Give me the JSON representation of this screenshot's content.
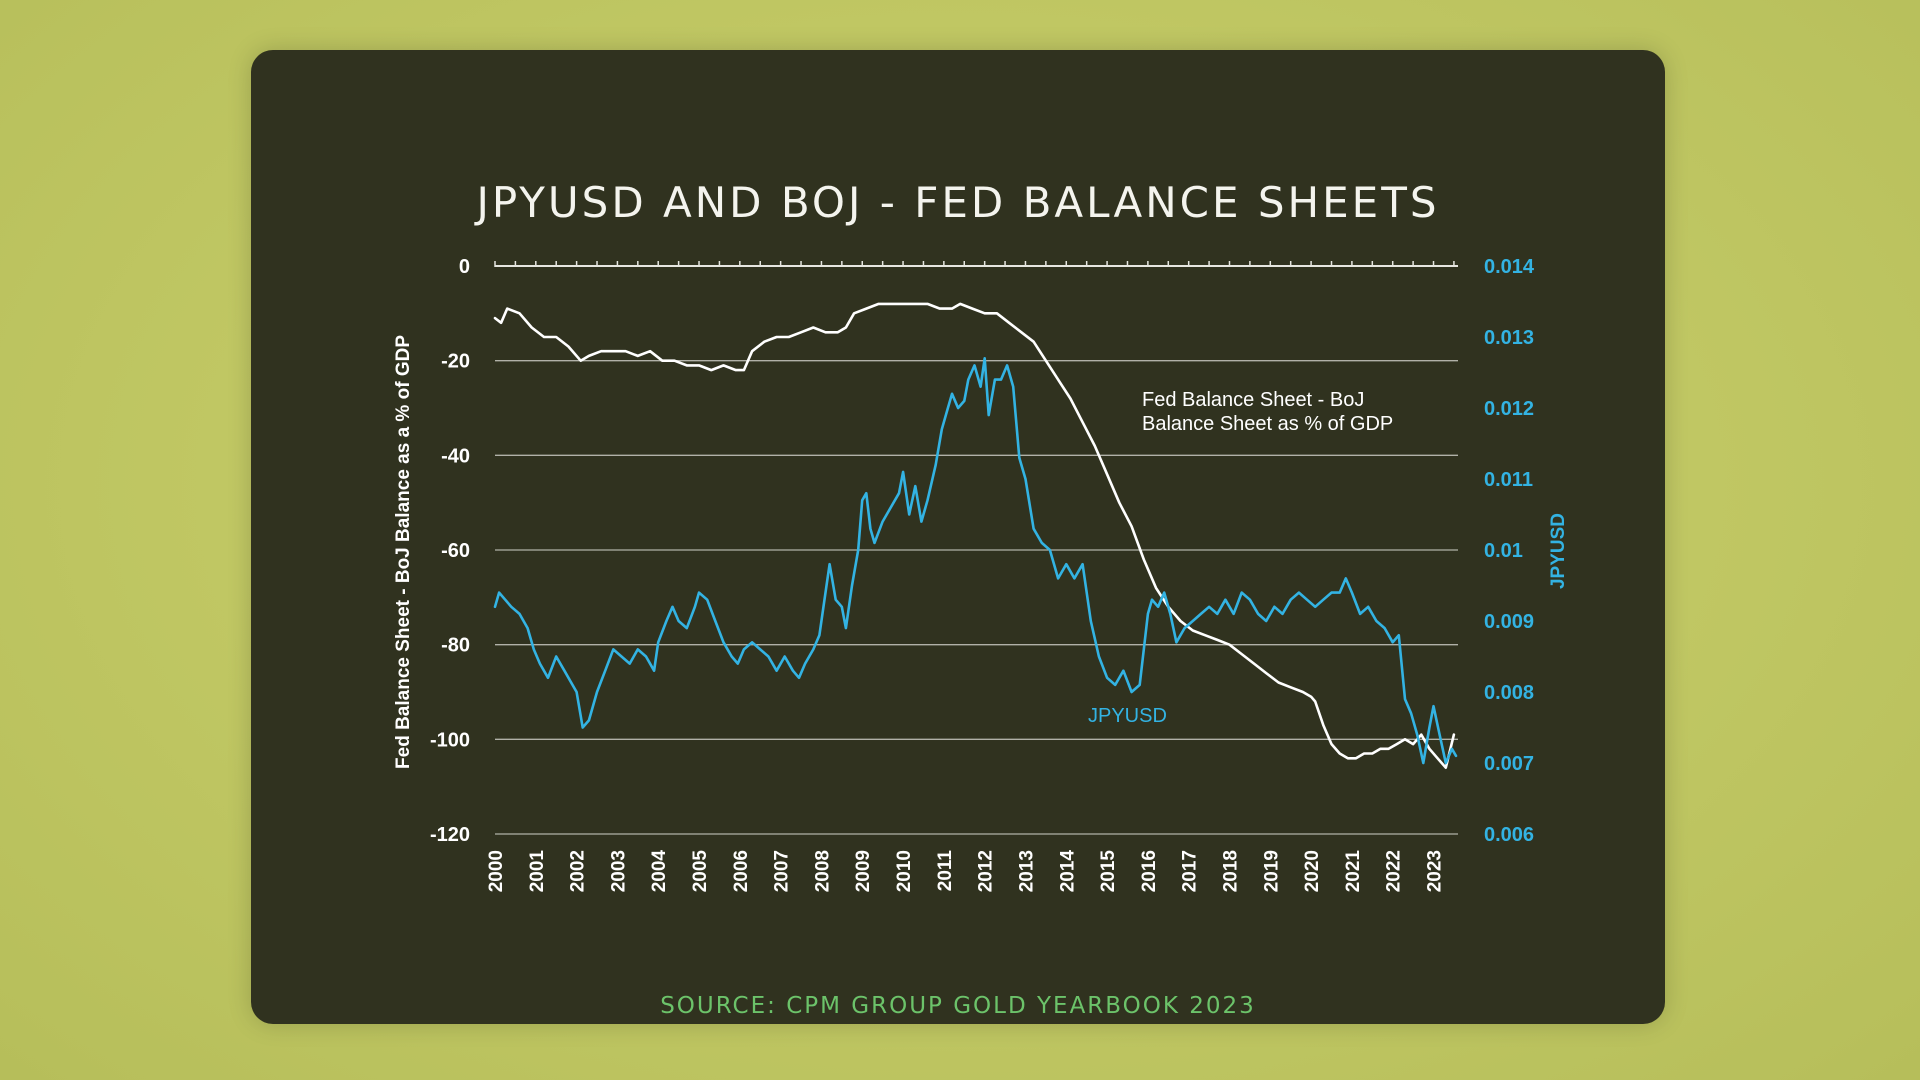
{
  "chart_data": {
    "type": "line",
    "title": "JPYUSD AND BOJ - FED BALANCE SHEETS",
    "source": "SOURCE: CPM GROUP GOLD YEARBOOK 2023",
    "x_ticks": [
      "2000",
      "2001",
      "2002",
      "2003",
      "2004",
      "2005",
      "2006",
      "2007",
      "2008",
      "2009",
      "2010",
      "2011",
      "2012",
      "2013",
      "2014",
      "2015",
      "2016",
      "2017",
      "2018",
      "2019",
      "2020",
      "2021",
      "2022",
      "2023"
    ],
    "xlim": [
      2000,
      2023.6
    ],
    "y_left": {
      "label": "Fed Balance Sheet - BoJ Balance as a % of GDP",
      "ticks": [
        "0",
        "-20",
        "-40",
        "-60",
        "-80",
        "-100",
        "-120"
      ],
      "lim": [
        -120,
        0
      ]
    },
    "y_right": {
      "label": "JPYUSD",
      "ticks": [
        "0.014",
        "0.013",
        "0.012",
        "0.011",
        "0.01",
        "0.009",
        "0.008",
        "0.007",
        "0.006"
      ],
      "lim": [
        0.006,
        0.014
      ]
    },
    "grid": {
      "horizontal": true,
      "values_left": [
        -20,
        -40,
        -60,
        -80,
        -100,
        -120
      ]
    },
    "series": [
      {
        "name": "Fed Balance Sheet - BoJ Balance Sheet as % of GDP",
        "label_lines": [
          "Fed Balance Sheet - BoJ",
          "Balance Sheet as % of GDP"
        ],
        "axis": "left",
        "color": "#ffffff",
        "x": [
          2000.0,
          2000.15,
          2000.3,
          2000.6,
          2000.9,
          2001.2,
          2001.5,
          2001.8,
          2002.1,
          2002.3,
          2002.6,
          2002.9,
          2003.2,
          2003.5,
          2003.8,
          2004.1,
          2004.4,
          2004.7,
          2005.0,
          2005.3,
          2005.6,
          2005.9,
          2006.1,
          2006.3,
          2006.6,
          2006.9,
          2007.2,
          2007.5,
          2007.8,
          2008.1,
          2008.4,
          2008.6,
          2008.8,
          2009.1,
          2009.4,
          2009.7,
          2010.0,
          2010.3,
          2010.6,
          2010.9,
          2011.2,
          2011.4,
          2011.7,
          2012.0,
          2012.3,
          2012.6,
          2012.9,
          2013.2,
          2013.5,
          2013.8,
          2014.1,
          2014.4,
          2014.7,
          2015.0,
          2015.3,
          2015.6,
          2015.9,
          2016.2,
          2016.5,
          2016.8,
          2017.1,
          2017.4,
          2017.7,
          2018.0,
          2018.3,
          2018.6,
          2018.9,
          2019.2,
          2019.5,
          2019.8,
          2020.0,
          2020.1,
          2020.3,
          2020.5,
          2020.7,
          2020.9,
          2021.1,
          2021.3,
          2021.5,
          2021.7,
          2021.9,
          2022.1,
          2022.3,
          2022.5,
          2022.7,
          2022.9,
          2023.1,
          2023.3,
          2023.5
        ],
        "y": [
          -11,
          -12,
          -9,
          -10,
          -13,
          -15,
          -15,
          -17,
          -20,
          -19,
          -18,
          -18,
          -18,
          -19,
          -18,
          -20,
          -20,
          -21,
          -21,
          -22,
          -21,
          -22,
          -22,
          -18,
          -16,
          -15,
          -15,
          -14,
          -13,
          -14,
          -14,
          -13,
          -10,
          -9,
          -8,
          -8,
          -8,
          -8,
          -8,
          -9,
          -9,
          -8,
          -9,
          -10,
          -10,
          -12,
          -14,
          -16,
          -20,
          -24,
          -28,
          -33,
          -38,
          -44,
          -50,
          -55,
          -62,
          -68,
          -72,
          -75,
          -77,
          -78,
          -79,
          -80,
          -82,
          -84,
          -86,
          -88,
          -89,
          -90,
          -91,
          -92,
          -97,
          -101,
          -103,
          -104,
          -104,
          -103,
          -103,
          -102,
          -102,
          -101,
          -100,
          -101,
          -99,
          -102,
          -104,
          -106,
          -99
        ]
      },
      {
        "name": "JPYUSD",
        "axis": "right",
        "color": "#33b3e3",
        "x": [
          2000.0,
          2000.1,
          2000.25,
          2000.4,
          2000.6,
          2000.8,
          2000.95,
          2001.1,
          2001.3,
          2001.5,
          2001.7,
          2001.9,
          2002.0,
          2002.15,
          2002.3,
          2002.5,
          2002.7,
          2002.9,
          2003.1,
          2003.3,
          2003.5,
          2003.7,
          2003.9,
          2004.0,
          2004.2,
          2004.35,
          2004.5,
          2004.7,
          2004.9,
          2005.0,
          2005.2,
          2005.4,
          2005.6,
          2005.8,
          2005.95,
          2006.1,
          2006.3,
          2006.5,
          2006.7,
          2006.9,
          2007.1,
          2007.3,
          2007.45,
          2007.6,
          2007.8,
          2007.95,
          2008.1,
          2008.2,
          2008.35,
          2008.5,
          2008.6,
          2008.75,
          2008.9,
          2009.0,
          2009.1,
          2009.2,
          2009.3,
          2009.5,
          2009.7,
          2009.9,
          2010.0,
          2010.15,
          2010.3,
          2010.45,
          2010.6,
          2010.8,
          2010.95,
          2011.1,
          2011.2,
          2011.35,
          2011.5,
          2011.6,
          2011.75,
          2011.9,
          2012.0,
          2012.1,
          2012.25,
          2012.4,
          2012.55,
          2012.7,
          2012.85,
          2013.0,
          2013.2,
          2013.4,
          2013.6,
          2013.8,
          2014.0,
          2014.2,
          2014.4,
          2014.6,
          2014.8,
          2015.0,
          2015.2,
          2015.4,
          2015.6,
          2015.8,
          2016.0,
          2016.1,
          2016.25,
          2016.4,
          2016.55,
          2016.7,
          2016.9,
          2017.1,
          2017.3,
          2017.5,
          2017.7,
          2017.9,
          2018.1,
          2018.3,
          2018.5,
          2018.7,
          2018.9,
          2019.1,
          2019.3,
          2019.5,
          2019.7,
          2019.9,
          2020.1,
          2020.3,
          2020.5,
          2020.7,
          2020.85,
          2021.0,
          2021.2,
          2021.4,
          2021.6,
          2021.8,
          2022.0,
          2022.15,
          2022.3,
          2022.45,
          2022.6,
          2022.75,
          2022.9,
          2023.0,
          2023.15,
          2023.3,
          2023.45,
          2023.55
        ],
        "y": [
          0.0092,
          0.0094,
          0.0093,
          0.0092,
          0.0091,
          0.0089,
          0.0086,
          0.0084,
          0.0082,
          0.0085,
          0.0083,
          0.0081,
          0.008,
          0.0075,
          0.0076,
          0.008,
          0.0083,
          0.0086,
          0.0085,
          0.0084,
          0.0086,
          0.0085,
          0.0083,
          0.0087,
          0.009,
          0.0092,
          0.009,
          0.0089,
          0.0092,
          0.0094,
          0.0093,
          0.009,
          0.0087,
          0.0085,
          0.0084,
          0.0086,
          0.0087,
          0.0086,
          0.0085,
          0.0083,
          0.0085,
          0.0083,
          0.0082,
          0.0084,
          0.0086,
          0.0088,
          0.0094,
          0.0098,
          0.0093,
          0.0092,
          0.0089,
          0.0095,
          0.01,
          0.0107,
          0.0108,
          0.0103,
          0.0101,
          0.0104,
          0.0106,
          0.0108,
          0.0111,
          0.0105,
          0.0109,
          0.0104,
          0.0107,
          0.0112,
          0.0117,
          0.012,
          0.0122,
          0.012,
          0.0121,
          0.0124,
          0.0126,
          0.0123,
          0.0127,
          0.0119,
          0.0124,
          0.0124,
          0.0126,
          0.0123,
          0.0113,
          0.011,
          0.0103,
          0.0101,
          0.01,
          0.0096,
          0.0098,
          0.0096,
          0.0098,
          0.009,
          0.0085,
          0.0082,
          0.0081,
          0.0083,
          0.008,
          0.0081,
          0.0091,
          0.0093,
          0.0092,
          0.0094,
          0.0091,
          0.0087,
          0.0089,
          0.009,
          0.0091,
          0.0092,
          0.0091,
          0.0093,
          0.0091,
          0.0094,
          0.0093,
          0.0091,
          0.009,
          0.0092,
          0.0091,
          0.0093,
          0.0094,
          0.0093,
          0.0092,
          0.0093,
          0.0094,
          0.0094,
          0.0096,
          0.0094,
          0.0091,
          0.0092,
          0.009,
          0.0089,
          0.0087,
          0.0088,
          0.0079,
          0.0077,
          0.0074,
          0.007,
          0.0075,
          0.0078,
          0.0074,
          0.007,
          0.0072,
          0.0071
        ]
      }
    ],
    "annotations": [
      {
        "text": "JPYUSD",
        "series": "JPYUSD"
      }
    ]
  }
}
